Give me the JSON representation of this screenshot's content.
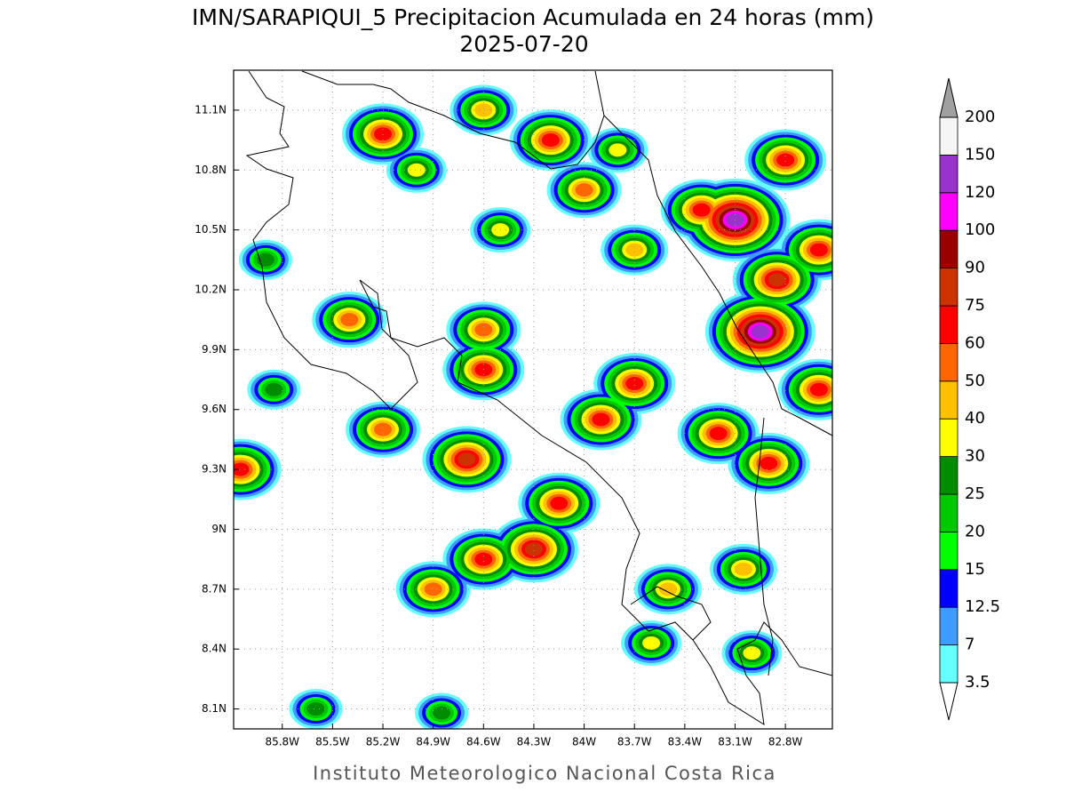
{
  "map": {
    "title": "IMN/SARAPIQUI_5 Precipitacion Acumulada en 24 horas (mm)",
    "date": "2025-07-20",
    "footer": "Instituto Meteorologico Nacional Costa Rica",
    "lonlim": [
      -86.09,
      -82.52
    ],
    "latlim": [
      8.0,
      11.3
    ],
    "lon_ticks": [
      {
        "value": -85.8,
        "label": "85.8W"
      },
      {
        "value": -85.5,
        "label": "85.5W"
      },
      {
        "value": -85.2,
        "label": "85.2W"
      },
      {
        "value": -84.9,
        "label": "84.9W"
      },
      {
        "value": -84.6,
        "label": "84.6W"
      },
      {
        "value": -84.3,
        "label": "84.3W"
      },
      {
        "value": -84.0,
        "label": "84W"
      },
      {
        "value": -83.7,
        "label": "83.7W"
      },
      {
        "value": -83.4,
        "label": "83.4W"
      },
      {
        "value": -83.1,
        "label": "83.1W"
      },
      {
        "value": -82.8,
        "label": "82.8W"
      }
    ],
    "lat_ticks": [
      {
        "value": 11.1,
        "label": "11.1N"
      },
      {
        "value": 10.8,
        "label": "10.8N"
      },
      {
        "value": 10.5,
        "label": "10.5N"
      },
      {
        "value": 10.2,
        "label": "10.2N"
      },
      {
        "value": 9.9,
        "label": "9.9N"
      },
      {
        "value": 9.6,
        "label": "9.6N"
      },
      {
        "value": 9.3,
        "label": "9.3N"
      },
      {
        "value": 9.0,
        "label": "9N"
      },
      {
        "value": 8.7,
        "label": "8.7N"
      },
      {
        "value": 8.4,
        "label": "8.4N"
      },
      {
        "value": 8.1,
        "label": "8.1N"
      }
    ],
    "levels": [
      3.5,
      7,
      12.5,
      15,
      20,
      25,
      30,
      40,
      50,
      60,
      75,
      90,
      100,
      120,
      150,
      200
    ],
    "colors": [
      "#66ffff",
      "#3f9cff",
      "#0000ff",
      "#00ff00",
      "#00c800",
      "#008c00",
      "#ffff00",
      "#ffc000",
      "#ff6600",
      "#ff0000",
      "#cc3300",
      "#990000",
      "#ff00ff",
      "#9933cc",
      "#f5f5f5"
    ],
    "over_color": "#a0a0a0",
    "under_color": "#ffffff",
    "cells": [
      {
        "lon": -84.2,
        "lat": 10.95,
        "peak": 60
      },
      {
        "lon": -85.2,
        "lat": 10.98,
        "peak": 60
      },
      {
        "lon": -84.6,
        "lat": 11.1,
        "peak": 40
      },
      {
        "lon": -83.8,
        "lat": 10.9,
        "peak": 30
      },
      {
        "lon": -83.1,
        "lat": 10.55,
        "peak": 120
      },
      {
        "lon": -82.8,
        "lat": 10.85,
        "peak": 60
      },
      {
        "lon": -83.3,
        "lat": 10.6,
        "peak": 60
      },
      {
        "lon": -82.85,
        "lat": 10.25,
        "peak": 75
      },
      {
        "lon": -82.95,
        "lat": 9.99,
        "peak": 120
      },
      {
        "lon": -82.6,
        "lat": 9.7,
        "peak": 60
      },
      {
        "lon": -82.6,
        "lat": 10.4,
        "peak": 60
      },
      {
        "lon": -84.0,
        "lat": 10.7,
        "peak": 50
      },
      {
        "lon": -85.0,
        "lat": 10.8,
        "peak": 30
      },
      {
        "lon": -84.5,
        "lat": 10.5,
        "peak": 30
      },
      {
        "lon": -83.7,
        "lat": 10.4,
        "peak": 40
      },
      {
        "lon": -84.6,
        "lat": 10.0,
        "peak": 50
      },
      {
        "lon": -84.6,
        "lat": 9.8,
        "peak": 60
      },
      {
        "lon": -83.7,
        "lat": 9.73,
        "peak": 60
      },
      {
        "lon": -85.4,
        "lat": 10.05,
        "peak": 50
      },
      {
        "lon": -85.2,
        "lat": 9.5,
        "peak": 50
      },
      {
        "lon": -84.7,
        "lat": 9.35,
        "peak": 75
      },
      {
        "lon": -84.15,
        "lat": 9.13,
        "peak": 60
      },
      {
        "lon": -84.3,
        "lat": 8.9,
        "peak": 75
      },
      {
        "lon": -84.6,
        "lat": 8.85,
        "peak": 60
      },
      {
        "lon": -84.9,
        "lat": 8.7,
        "peak": 50
      },
      {
        "lon": -83.9,
        "lat": 9.55,
        "peak": 60
      },
      {
        "lon": -83.2,
        "lat": 9.48,
        "peak": 60
      },
      {
        "lon": -82.9,
        "lat": 9.33,
        "peak": 60
      },
      {
        "lon": -86.05,
        "lat": 9.3,
        "peak": 60
      },
      {
        "lon": -83.05,
        "lat": 8.8,
        "peak": 40
      },
      {
        "lon": -83.5,
        "lat": 8.7,
        "peak": 40
      },
      {
        "lon": -83.6,
        "lat": 8.43,
        "peak": 30
      },
      {
        "lon": -85.6,
        "lat": 8.1,
        "peak": 25
      },
      {
        "lon": -84.85,
        "lat": 8.08,
        "peak": 25
      },
      {
        "lon": -83.0,
        "lat": 8.38,
        "peak": 30
      },
      {
        "lon": -85.9,
        "lat": 10.35,
        "peak": 25
      },
      {
        "lon": -85.85,
        "lat": 9.7,
        "peak": 25
      }
    ]
  }
}
